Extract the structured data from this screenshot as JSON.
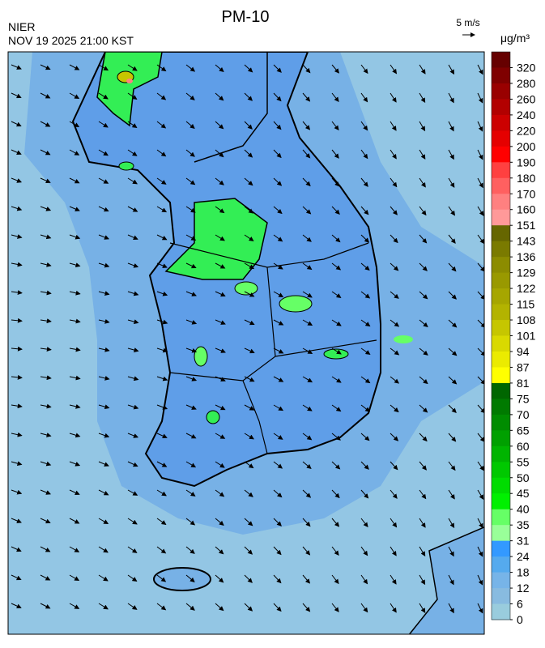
{
  "title": "PM-10",
  "agency": "NIER",
  "timestamp": "NOV 19 2025 21:00 KST",
  "wind_scale_label": "5 m/s",
  "unit": "μg/m³",
  "colorbar": {
    "ticks": [
      320,
      280,
      260,
      240,
      220,
      200,
      190,
      180,
      170,
      160,
      151,
      143,
      136,
      129,
      122,
      115,
      108,
      101,
      94,
      87,
      81,
      75,
      70,
      65,
      60,
      55,
      50,
      45,
      40,
      35,
      31,
      24,
      18,
      12,
      6,
      0
    ],
    "colors": [
      "#660000",
      "#7f0000",
      "#990000",
      "#b20000",
      "#cc0000",
      "#e50000",
      "#ff0000",
      "#ff4040",
      "#ff6060",
      "#ff8080",
      "#ff9999",
      "#666600",
      "#7a7a00",
      "#8c8c00",
      "#999900",
      "#a6a600",
      "#b3b300",
      "#c6c600",
      "#d9d900",
      "#ebeb00",
      "#ffff00",
      "#006600",
      "#007a00",
      "#008c00",
      "#00a000",
      "#00b400",
      "#00c800",
      "#00dc00",
      "#00f000",
      "#66ff66",
      "#99ff99",
      "#3399ff",
      "#55aaee",
      "#77b4e8",
      "#88bbe0",
      "#99ccdd"
    ]
  }
}
